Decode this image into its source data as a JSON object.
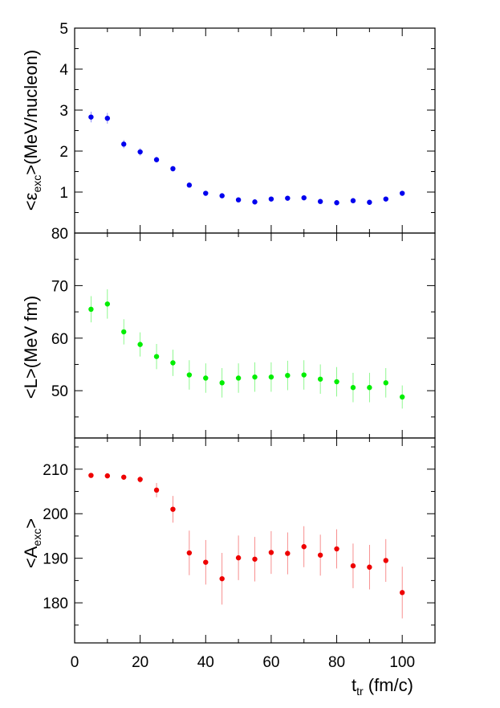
{
  "x_axis": {
    "label_main": "t",
    "label_sub": "tr",
    "label_unit": " (fm/c)",
    "range": [
      0,
      110
    ],
    "ticks": [
      0,
      20,
      40,
      60,
      80,
      100
    ],
    "tick_labels": [
      "0",
      "20",
      "40",
      "60",
      "80",
      "100"
    ]
  },
  "chart_data": [
    {
      "type": "scatter",
      "panel": "top",
      "ylabel_prefix": "<ε",
      "ylabel_sub": "exc",
      "ylabel_suffix": ">(MeV/nucleon)",
      "ylim": [
        0,
        5
      ],
      "yticks": [
        1,
        2,
        3,
        4,
        5
      ],
      "ytick_labels": [
        "1",
        "2",
        "3",
        "4",
        "5"
      ],
      "color": "#0000ee",
      "x": [
        5,
        10,
        15,
        20,
        25,
        30,
        35,
        40,
        45,
        50,
        55,
        60,
        65,
        70,
        75,
        80,
        85,
        90,
        95,
        100
      ],
      "y": [
        2.83,
        2.8,
        2.17,
        1.98,
        1.79,
        1.57,
        1.17,
        0.97,
        0.91,
        0.81,
        0.76,
        0.83,
        0.85,
        0.86,
        0.77,
        0.74,
        0.79,
        0.75,
        0.83,
        0.97
      ],
      "err": [
        0.13,
        0.13,
        0.1,
        0.09,
        0.07,
        0.07,
        0.05,
        0.04,
        0.04,
        0.04,
        0.04,
        0.04,
        0.04,
        0.04,
        0.04,
        0.04,
        0.04,
        0.04,
        0.04,
        0.05
      ]
    },
    {
      "type": "scatter",
      "panel": "middle",
      "ylabel_prefix": "<L>(MeV fm)",
      "ylabel_sub": "",
      "ylabel_suffix": "",
      "ylim": [
        41,
        80
      ],
      "yticks": [
        50,
        60,
        70,
        80
      ],
      "ytick_labels": [
        "50",
        "60",
        "70",
        "80"
      ],
      "color": "#00ee00",
      "x": [
        5,
        10,
        15,
        20,
        25,
        30,
        35,
        40,
        45,
        50,
        55,
        60,
        65,
        70,
        75,
        80,
        85,
        90,
        95,
        100
      ],
      "y": [
        65.5,
        66.5,
        61.2,
        58.8,
        56.5,
        55.3,
        53.0,
        52.4,
        51.5,
        52.4,
        52.6,
        52.6,
        52.9,
        53.0,
        52.2,
        51.7,
        50.6,
        50.6,
        51.5,
        48.8
      ],
      "err": [
        2.5,
        2.8,
        2.4,
        2.3,
        2.4,
        2.5,
        2.8,
        2.8,
        2.8,
        2.8,
        2.8,
        2.8,
        2.8,
        2.8,
        2.8,
        2.8,
        2.8,
        2.8,
        2.8,
        2.2
      ]
    },
    {
      "type": "scatter",
      "panel": "bottom",
      "ylabel_prefix": "<A",
      "ylabel_sub": "exc",
      "ylabel_suffix": ">",
      "ylim": [
        171,
        217
      ],
      "yticks": [
        180,
        190,
        200,
        210
      ],
      "ytick_labels": [
        "180",
        "190",
        "200",
        "210"
      ],
      "color": "#ee0000",
      "x": [
        5,
        10,
        15,
        20,
        25,
        30,
        35,
        40,
        45,
        50,
        55,
        60,
        65,
        70,
        75,
        80,
        85,
        90,
        95,
        100
      ],
      "y": [
        208.6,
        208.5,
        208.2,
        207.7,
        205.3,
        201.0,
        191.2,
        189.1,
        185.4,
        190.1,
        189.8,
        191.3,
        191.1,
        192.6,
        190.7,
        192.1,
        188.3,
        188.0,
        189.5,
        182.3
      ],
      "err": [
        0.5,
        0.5,
        0.6,
        0.7,
        1.6,
        3.0,
        5.0,
        5.0,
        5.8,
        5.0,
        5.0,
        4.8,
        4.7,
        4.6,
        4.6,
        4.4,
        5.0,
        5.0,
        4.8,
        5.8
      ]
    }
  ]
}
